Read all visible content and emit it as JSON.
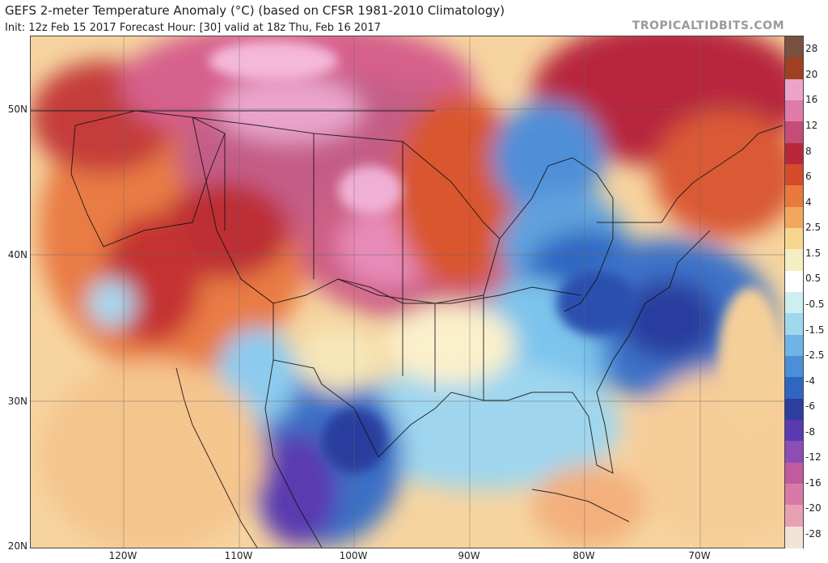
{
  "header": {
    "title": "GEFS 2-meter Temperature Anomaly (°C) (based on CFSR 1981-2010 Climatology)",
    "subtitle": "Init: 12z Feb 15 2017   Forecast Hour: [30]   valid at 18z Thu, Feb 16 2017",
    "brand": "TROPICALTIDBITS.COM"
  },
  "axes": {
    "lat_labels": [
      "50N",
      "40N",
      "30N",
      "20N"
    ],
    "lon_labels": [
      "120W",
      "110W",
      "100W",
      "90W",
      "80W",
      "70W"
    ]
  },
  "colorbar": {
    "labels": [
      "28",
      "20",
      "16",
      "12",
      "8",
      "6",
      "4",
      "2.5",
      "1.5",
      "0.5",
      "-0.5",
      "-1.5",
      "-2.5",
      "-4",
      "-6",
      "-8",
      "-12",
      "-16",
      "-20",
      "-28"
    ],
    "colors": [
      "#f2e4d4",
      "#e8a0b4",
      "#d97aa6",
      "#c25a9e",
      "#8c4db5",
      "#5a3ab0",
      "#2c3e9e",
      "#2f66c2",
      "#4a8fd8",
      "#6fb4e6",
      "#a0d8ee",
      "#cdeff2",
      "#ffffff",
      "#f5eec4",
      "#f8d690",
      "#f2a85c",
      "#e87a3c",
      "#d44a2a",
      "#b8283a",
      "#c54b78",
      "#e07aa8",
      "#eda3c8",
      "#a04020",
      "#7a5040"
    ]
  },
  "icons": {
    "map": "temperature-anomaly-map"
  }
}
